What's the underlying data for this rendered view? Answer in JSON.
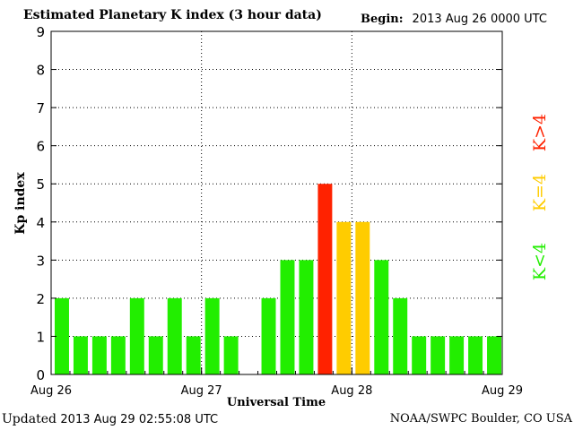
{
  "header": {
    "title": "Estimated Planetary K index (3 hour data)",
    "begin_label": "Begin:",
    "begin_value": "2013 Aug 26 0000 UTC"
  },
  "footer": {
    "updated_label": "Updated",
    "updated_value": "2013 Aug 29 02:55:08 UTC",
    "credit": "NOAA/SWPC Boulder, CO USA"
  },
  "colors": {
    "low": "#22ee00",
    "storm_watch": "#ffcc00",
    "storm": "#ff2200"
  },
  "chart_data": {
    "type": "bar",
    "xlabel": "Universal Time",
    "ylabel": "Kp index",
    "ylim": [
      0,
      9
    ],
    "yticks": [
      "0",
      "1",
      "2",
      "3",
      "4",
      "5",
      "6",
      "7",
      "8",
      "9"
    ],
    "xticks": [
      "Aug 26",
      "Aug 27",
      "Aug 28",
      "Aug 29"
    ],
    "bins_per_day": 8,
    "values": [
      2,
      1,
      1,
      1,
      2,
      1,
      2,
      1,
      2,
      1,
      0,
      2,
      3,
      3,
      5,
      4,
      4,
      3,
      2,
      1,
      1,
      1,
      1,
      1
    ],
    "grid": true,
    "legend": [
      "K<4",
      "K=4",
      "K>4"
    ],
    "legend_placement": "right"
  }
}
